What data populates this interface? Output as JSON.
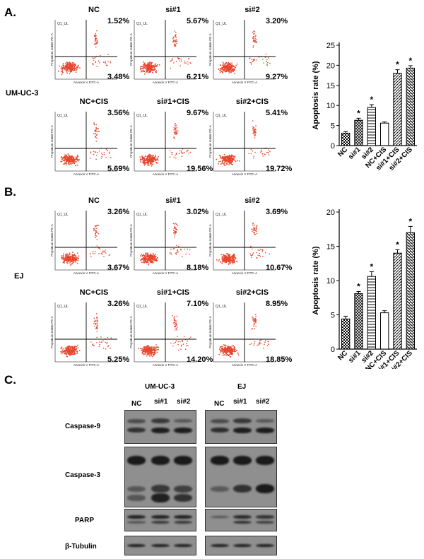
{
  "panels": {
    "A": {
      "letter": "A.",
      "cell_line": "UM-UC-3",
      "plots": [
        {
          "title": "NC",
          "ur": "1.52%",
          "lr": "3.48%"
        },
        {
          "title": "si#1",
          "ur": "5.67%",
          "lr": "6.21%"
        },
        {
          "title": "si#2",
          "ur": "3.20%",
          "lr": "9.27%"
        },
        {
          "title": "NC+CIS",
          "ur": "3.56%",
          "lr": "5.69%"
        },
        {
          "title": "si#1+CIS",
          "ur": "9.67%",
          "lr": "19.56%"
        },
        {
          "title": "si#2+CIS",
          "ur": "5.41%",
          "lr": "19.72%"
        }
      ]
    },
    "B": {
      "letter": "B.",
      "cell_line": "EJ",
      "plots": [
        {
          "title": "NC",
          "ur": "3.26%",
          "lr": "3.67%"
        },
        {
          "title": "si#1",
          "ur": "3.02%",
          "lr": "8.18%"
        },
        {
          "title": "si#2",
          "ur": "3.69%",
          "lr": "10.67%"
        },
        {
          "title": "NC+CIS",
          "ur": "3.26%",
          "lr": "5.25%"
        },
        {
          "title": "si#1+CIS",
          "ur": "7.10%",
          "lr": "14.20%"
        },
        {
          "title": "si#2+CIS",
          "ur": "8.95%",
          "lr": "18.85%"
        }
      ]
    },
    "C": {
      "letter": "C.",
      "groups": [
        "UM-UC-3",
        "EJ"
      ],
      "lanes": [
        "NC",
        "si#1",
        "si#2"
      ],
      "proteins": [
        "Caspase-9",
        "Caspase-3",
        "PARP",
        "β-Tubulin"
      ]
    }
  },
  "flow_axes": {
    "y": "Propidium Iodide PE-A",
    "x": "Annexin V FITC-A",
    "quadrant": "Q1_UL"
  },
  "colors": {
    "dots": "#e8452c",
    "bar_edge": "#000000"
  },
  "chart_data": [
    {
      "type": "bar",
      "ylabel": "Apoptosis rate (%)",
      "categories": [
        "NC",
        "si#1",
        "si#2",
        "NC+CIS",
        "si#1+CIS",
        "si#2+CIS"
      ],
      "values": [
        3.1,
        6.3,
        9.5,
        5.6,
        18.0,
        19.3
      ],
      "errors": [
        0.4,
        0.5,
        0.7,
        0.3,
        0.9,
        0.6
      ],
      "significant": [
        false,
        true,
        true,
        false,
        true,
        true
      ],
      "ylim": [
        0,
        25
      ],
      "yticks": [
        0,
        5,
        10,
        15,
        20,
        25
      ],
      "sig_marker": "*"
    },
    {
      "type": "bar",
      "ylabel": "Apoptosis rate (%)",
      "categories": [
        "NC",
        "si#1",
        "si#2",
        "NC+CIS",
        "si#1+CIS",
        "si#2+CIS"
      ],
      "values": [
        4.4,
        8.1,
        10.6,
        5.3,
        14.0,
        17.0
      ],
      "errors": [
        0.4,
        0.3,
        0.7,
        0.3,
        0.5,
        0.9
      ],
      "significant": [
        false,
        true,
        true,
        false,
        true,
        true
      ],
      "ylim": [
        0,
        20
      ],
      "yticks": [
        0,
        5,
        10,
        15,
        20
      ],
      "sig_marker": "*"
    }
  ]
}
